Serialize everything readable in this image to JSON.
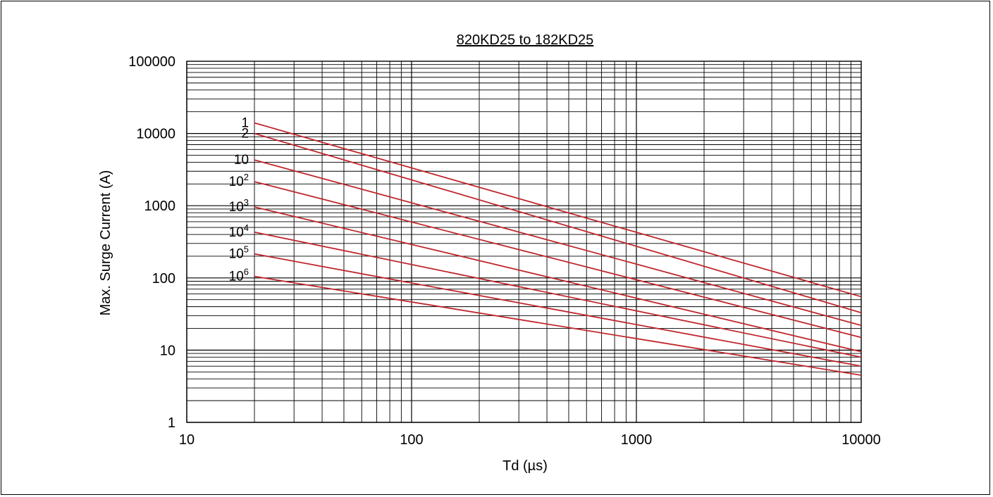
{
  "chart_data": {
    "type": "line",
    "title": "820KD25 to 182KD25",
    "xlabel": "Td (µs)",
    "ylabel": "Max. Surge Current (A)",
    "x_scale": "log",
    "y_scale": "log",
    "xlim": [
      10,
      10000
    ],
    "ylim": [
      1,
      100000
    ],
    "x_tick_labels": [
      "10",
      "100",
      "1000",
      "10000"
    ],
    "y_tick_labels": [
      "1",
      "10",
      "100",
      "1000",
      "10000",
      "100000"
    ],
    "grid": true,
    "line_color": "#c0272d",
    "series": [
      {
        "label_base": "1",
        "label_exp": "",
        "x": [
          20,
          10000
        ],
        "y": [
          14000,
          55
        ]
      },
      {
        "label_base": "2",
        "label_exp": "",
        "x": [
          20,
          10000
        ],
        "y": [
          10000,
          33
        ]
      },
      {
        "label_base": "10",
        "label_exp": "",
        "x": [
          20,
          10000
        ],
        "y": [
          4300,
          22
        ]
      },
      {
        "label_base": "10",
        "label_exp": "2",
        "x": [
          20,
          10000
        ],
        "y": [
          2150,
          15
        ]
      },
      {
        "label_base": "10",
        "label_exp": "3",
        "x": [
          20,
          10000
        ],
        "y": [
          960,
          9.5
        ]
      },
      {
        "label_base": "10",
        "label_exp": "4",
        "x": [
          20,
          10000
        ],
        "y": [
          430,
          8
        ]
      },
      {
        "label_base": "10",
        "label_exp": "5",
        "x": [
          20,
          10000
        ],
        "y": [
          215,
          6
        ]
      },
      {
        "label_base": "10",
        "label_exp": "6",
        "x": [
          20,
          10000
        ],
        "y": [
          105,
          4.5
        ]
      }
    ]
  }
}
